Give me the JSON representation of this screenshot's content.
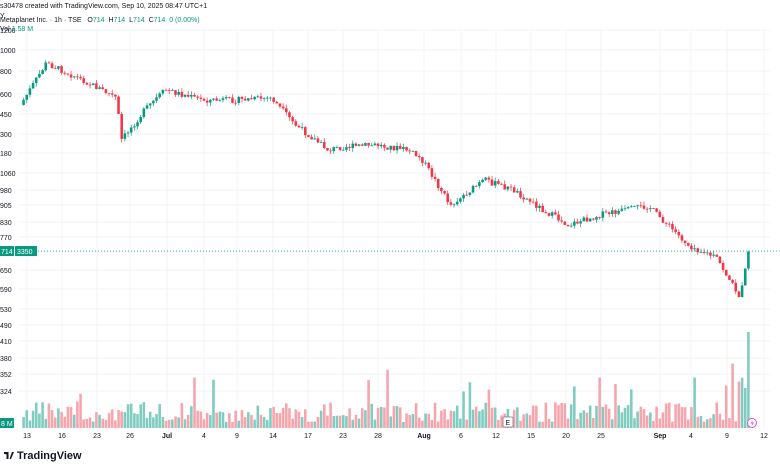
{
  "header": {
    "attribution": "s30478 created with TradingView.com, Sep 10, 2025 08:47 UTC+1",
    "symbol": "Metaplanet Inc. · 1h · TSE",
    "o_label": "O",
    "o_value": "714",
    "h_label": "H",
    "h_value": "714",
    "l_label": "L",
    "l_value": "714",
    "c_label": "C",
    "c_value": "714",
    "change": "0 (0.00%)",
    "vol_label": "Vol",
    "vol_value": "1.58 M",
    "currency": "Y"
  },
  "price_tag": {
    "price": "714",
    "volume": "3350"
  },
  "vol_tag": "8 M",
  "event_marker": "E",
  "brand": "TradingView",
  "colors": {
    "up": "#089981",
    "down": "#f23645",
    "up_vol": "#80ccc0",
    "down_vol": "#f7a5ad",
    "axis_text": "#131722",
    "grid": "#f0f3fa"
  },
  "chart_data": {
    "type": "candlestick",
    "title": "Metaplanet Inc. · 1h · TSE",
    "y_axis_labels": [
      "1200",
      "1000",
      "800",
      "600",
      "450",
      "300",
      "180",
      "1060",
      "980",
      "905",
      "830",
      "770",
      "710",
      "650",
      "590",
      "530",
      "490",
      "410",
      "380",
      "352",
      "324"
    ],
    "x_axis_labels": [
      "13",
      "16",
      "23",
      "26",
      "Jul",
      "4",
      "9",
      "14",
      "17",
      "23",
      "28",
      "Aug",
      "6",
      "12",
      "15",
      "20",
      "25",
      "Sep",
      "4",
      "9",
      "12"
    ],
    "last_price": 714,
    "price_path": [
      {
        "label": "Jun 13",
        "price": 620
      },
      {
        "label": "Jun 16",
        "price": 900
      },
      {
        "label": "Jun 20",
        "price": 870
      },
      {
        "label": "Jun 23",
        "price": 780
      },
      {
        "label": "Jun 25",
        "price": 650
      },
      {
        "label": "Jun 26",
        "price": 470
      },
      {
        "label": "Jun 27",
        "price": 600
      },
      {
        "label": "Jul 1",
        "price": 640
      },
      {
        "label": "Jul 4",
        "price": 600
      },
      {
        "label": "Jul 9",
        "price": 590
      },
      {
        "label": "Jul 14",
        "price": 600
      },
      {
        "label": "Jul 16",
        "price": 420
      },
      {
        "label": "Jul 22",
        "price": 350
      },
      {
        "label": "Jul 23",
        "price": 205
      },
      {
        "label": "Jul 28",
        "price": 215
      },
      {
        "label": "Jul 31",
        "price": 205
      },
      {
        "label": "Aug 4",
        "price": 140
      },
      {
        "label": "Aug 6",
        "price": 925
      },
      {
        "label": "Aug 12",
        "price": 1020
      },
      {
        "label": "Aug 14",
        "price": 980
      },
      {
        "label": "Aug 18",
        "price": 870
      },
      {
        "label": "Aug 22",
        "price": 840
      },
      {
        "label": "Aug 27",
        "price": 860
      },
      {
        "label": "Sep 1",
        "price": 865
      },
      {
        "label": "Sep 4",
        "price": 735
      },
      {
        "label": "Sep 8",
        "price": 690
      },
      {
        "label": "Sep 9",
        "price": 565
      },
      {
        "label": "Sep 10",
        "price": 714
      }
    ],
    "volume_note": "Volume histogram along the bottom; largest spikes near Sep 9–10."
  }
}
